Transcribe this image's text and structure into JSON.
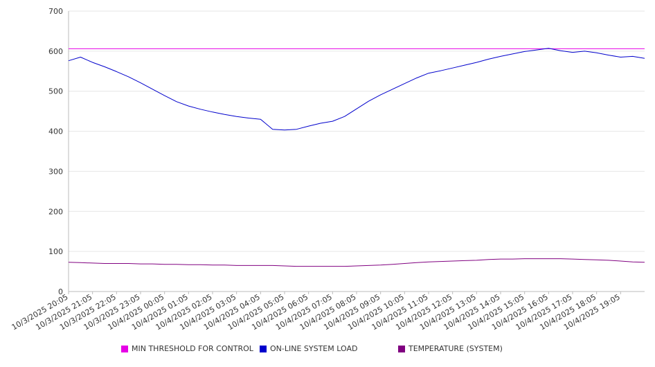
{
  "chart_data": {
    "type": "line",
    "title": "",
    "xlabel": "",
    "ylabel": "",
    "ylim": [
      0,
      700
    ],
    "yticks": [
      0,
      100,
      200,
      300,
      400,
      500,
      600,
      700
    ],
    "xlim": [
      "10/3/2025 20:05",
      "10/4/2025 20:05"
    ],
    "x_tick_labels": [
      "10/3/2025 20:05",
      "10/3/2025 21:05",
      "10/3/2025 22:05",
      "10/3/2025 23:05",
      "10/4/2025 00:05",
      "10/4/2025 01:05",
      "10/4/2025 02:05",
      "10/4/2025 03:05",
      "10/4/2025 04:05",
      "10/4/2025 05:05",
      "10/4/2025 06:05",
      "10/4/2025 07:05",
      "10/4/2025 08:05",
      "10/4/2025 09:05",
      "10/4/2025 10:05",
      "10/4/2025 11:05",
      "10/4/2025 12:05",
      "10/4/2025 13:05",
      "10/4/2025 14:05",
      "10/4/2025 15:05",
      "10/4/2025 16:05",
      "10/4/2025 17:05",
      "10/4/2025 18:05",
      "10/4/2025 19:05"
    ],
    "grid": "horizontal",
    "legend_position": "bottom",
    "x": [
      "10/3/2025 20:05",
      "10/3/2025 20:35",
      "10/3/2025 21:05",
      "10/3/2025 21:35",
      "10/3/2025 22:05",
      "10/3/2025 22:35",
      "10/3/2025 23:05",
      "10/3/2025 23:35",
      "10/4/2025 00:05",
      "10/4/2025 00:35",
      "10/4/2025 01:05",
      "10/4/2025 01:35",
      "10/4/2025 02:05",
      "10/4/2025 02:35",
      "10/4/2025 03:05",
      "10/4/2025 03:35",
      "10/4/2025 04:05",
      "10/4/2025 04:35",
      "10/4/2025 05:05",
      "10/4/2025 05:35",
      "10/4/2025 06:05",
      "10/4/2025 06:35",
      "10/4/2025 07:05",
      "10/4/2025 07:35",
      "10/4/2025 08:05",
      "10/4/2025 08:35",
      "10/4/2025 09:05",
      "10/4/2025 09:35",
      "10/4/2025 10:05",
      "10/4/2025 10:35",
      "10/4/2025 11:05",
      "10/4/2025 11:35",
      "10/4/2025 12:05",
      "10/4/2025 12:35",
      "10/4/2025 13:05",
      "10/4/2025 13:35",
      "10/4/2025 14:05",
      "10/4/2025 14:35",
      "10/4/2025 15:05",
      "10/4/2025 15:35",
      "10/4/2025 16:05",
      "10/4/2025 16:35",
      "10/4/2025 17:05",
      "10/4/2025 17:35",
      "10/4/2025 18:05",
      "10/4/2025 18:35",
      "10/4/2025 19:05",
      "10/4/2025 19:35",
      "10/4/2025 20:05"
    ],
    "series": [
      {
        "name": "MIN THRESHOLD FOR CONTROL",
        "color": "#e600e6",
        "values": [
          606,
          606,
          606,
          606,
          606,
          606,
          606,
          606,
          606,
          606,
          606,
          606,
          606,
          606,
          606,
          606,
          606,
          606,
          606,
          606,
          606,
          606,
          606,
          606,
          606,
          606,
          606,
          606,
          606,
          606,
          606,
          606,
          606,
          606,
          606,
          606,
          606,
          606,
          606,
          606,
          606,
          606,
          606,
          606,
          606,
          606,
          606,
          606,
          606
        ]
      },
      {
        "name": "ON-LINE SYSTEM LOAD",
        "color": "#0000cc",
        "values": [
          576,
          585,
          572,
          561,
          549,
          536,
          521,
          505,
          489,
          474,
          463,
          455,
          448,
          442,
          437,
          433,
          430,
          405,
          403,
          405,
          413,
          420,
          425,
          437,
          456,
          475,
          491,
          505,
          519,
          533,
          545,
          551,
          558,
          565,
          572,
          580,
          587,
          593,
          599,
          603,
          607,
          601,
          597,
          600,
          596,
          590,
          585,
          587,
          582
        ]
      },
      {
        "name": "TEMPERATURE (SYSTEM)",
        "color": "#800080",
        "values": [
          73,
          72,
          71,
          70,
          70,
          70,
          69,
          69,
          68,
          68,
          67,
          67,
          66,
          66,
          65,
          65,
          65,
          65,
          64,
          63,
          63,
          63,
          63,
          63,
          64,
          65,
          66,
          68,
          70,
          72,
          74,
          75,
          76,
          77,
          78,
          80,
          81,
          81,
          82,
          82,
          82,
          82,
          81,
          80,
          79,
          78,
          76,
          74,
          73
        ]
      }
    ]
  }
}
